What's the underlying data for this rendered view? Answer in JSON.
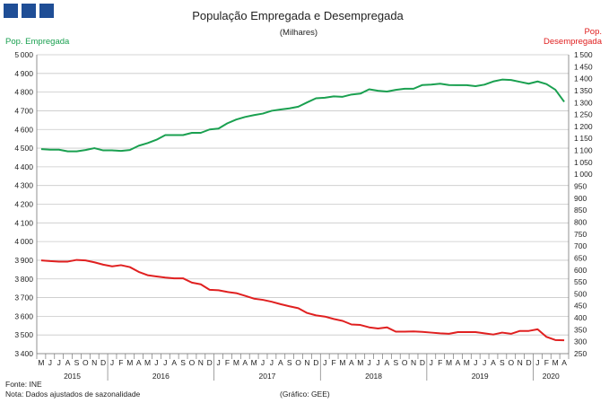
{
  "header": {
    "logo_color": "#1f4e96"
  },
  "chart_data": {
    "type": "line",
    "title": "População Empregada e Desempregada",
    "subtitle": "(Milhares)",
    "ylabel_left": "Pop. Empregada",
    "ylabel_right": "Pop.\nDesempregada",
    "ylim_left": [
      3400,
      5000
    ],
    "ytick_step_left": 100,
    "ylim_right": [
      250,
      1500
    ],
    "ytick_step_right": 50,
    "month_letters": [
      "M",
      "J",
      "J",
      "A",
      "S",
      "O",
      "N",
      "D",
      "J",
      "F",
      "M",
      "A",
      "M",
      "J",
      "J",
      "A",
      "S",
      "O",
      "N",
      "D",
      "J",
      "F",
      "M",
      "A",
      "M",
      "J",
      "J",
      "A",
      "S",
      "O",
      "N",
      "D",
      "J",
      "F",
      "M",
      "A",
      "M",
      "J",
      "J",
      "A",
      "S",
      "O",
      "N",
      "D",
      "J",
      "F",
      "M",
      "A",
      "M",
      "J",
      "J",
      "A",
      "S",
      "O",
      "N",
      "D",
      "J",
      "F",
      "M",
      "A"
    ],
    "year_labels": [
      {
        "label": "2015",
        "start": 0,
        "end": 7
      },
      {
        "label": "2016",
        "start": 8,
        "end": 19
      },
      {
        "label": "2017",
        "start": 20,
        "end": 31
      },
      {
        "label": "2018",
        "start": 32,
        "end": 43
      },
      {
        "label": "2019",
        "start": 44,
        "end": 55
      },
      {
        "label": "2020",
        "start": 56,
        "end": 59
      }
    ],
    "grid": true,
    "series": [
      {
        "name": "Pop. Empregada",
        "axis": "left",
        "color": "#1aa050",
        "values": [
          4495,
          4492,
          4492,
          4483,
          4483,
          4490,
          4500,
          4488,
          4488,
          4485,
          4490,
          4513,
          4527,
          4545,
          4570,
          4570,
          4570,
          4582,
          4582,
          4600,
          4605,
          4633,
          4653,
          4667,
          4677,
          4685,
          4700,
          4707,
          4713,
          4722,
          4745,
          4767,
          4770,
          4777,
          4775,
          4787,
          4792,
          4815,
          4807,
          4803,
          4812,
          4818,
          4818,
          4838,
          4840,
          4845,
          4838,
          4837,
          4837,
          4832,
          4840,
          4857,
          4867,
          4865,
          4855,
          4845,
          4857,
          4843,
          4813,
          4748
        ]
      },
      {
        "name": "Pop. Desempregada",
        "axis": "right",
        "color": "#e02020",
        "values": [
          640,
          637,
          635,
          635,
          642,
          640,
          632,
          622,
          615,
          620,
          612,
          592,
          578,
          573,
          568,
          565,
          565,
          547,
          540,
          517,
          515,
          508,
          503,
          492,
          480,
          475,
          467,
          457,
          448,
          440,
          420,
          410,
          405,
          395,
          387,
          372,
          370,
          360,
          355,
          360,
          342,
          342,
          343,
          341,
          338,
          335,
          333,
          340,
          340,
          340,
          335,
          330,
          338,
          333,
          345,
          345,
          352,
          320,
          307,
          306
        ]
      }
    ]
  },
  "footer": {
    "source": "Fonte: INE",
    "note": "Nota: Dados ajustados de sazonalidade",
    "credit": "(Gráfico: GEE)"
  }
}
